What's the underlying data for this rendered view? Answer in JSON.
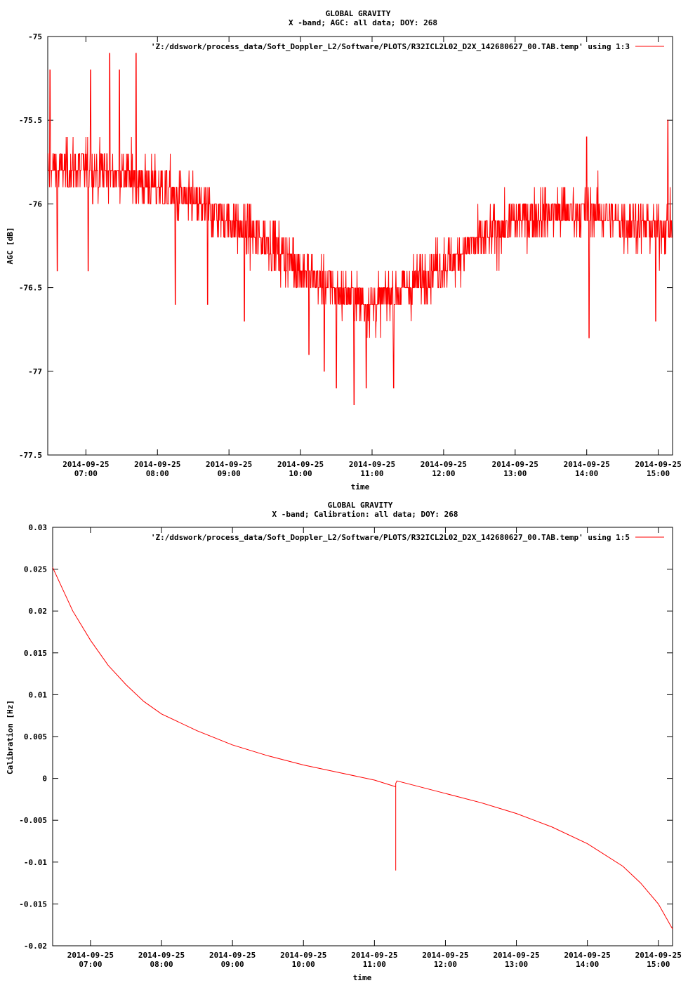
{
  "chart_data": [
    {
      "type": "line",
      "title": "GLOBAL GRAVITY",
      "subtitle": "X -band; AGC: all data; DOY: 268",
      "xlabel": "time",
      "ylabel": "AGC [dB]",
      "ylim": [
        -77.5,
        -75
      ],
      "yticks": [
        "-75",
        "-75.5",
        "-76",
        "-76.5",
        "-77",
        "-77.5"
      ],
      "xlim": [
        "06:28",
        "15:12"
      ],
      "xtick_dates": [
        "2014-09-25",
        "2014-09-25",
        "2014-09-25",
        "2014-09-25",
        "2014-09-25",
        "2014-09-25",
        "2014-09-25",
        "2014-09-25",
        "2014-09-25"
      ],
      "xtick_times": [
        "07:00",
        "08:00",
        "09:00",
        "10:00",
        "11:00",
        "12:00",
        "13:00",
        "14:00",
        "15:00"
      ],
      "grid": false,
      "legend_position": "top-right",
      "series": [
        {
          "name": "'Z:/ddswork/process_data/Soft_Doppler_L2/Software/PLOTS/R32ICL2L02_D2X_142680627_00.TAB.temp' using 1:3",
          "color": "#ff0000",
          "trend": {
            "x": [
              "06:28",
              "07:00",
              "07:30",
              "08:00",
              "08:30",
              "09:00",
              "09:30",
              "10:00",
              "10:30",
              "11:00",
              "11:30",
              "12:00",
              "12:30",
              "13:00",
              "13:30",
              "14:00",
              "14:30",
              "15:00",
              "15:12"
            ],
            "y": [
              -75.8,
              -75.78,
              -75.82,
              -75.9,
              -76.0,
              -76.1,
              -76.22,
              -76.38,
              -76.52,
              -76.6,
              -76.5,
              -76.35,
              -76.22,
              -76.1,
              -76.05,
              -76.05,
              -76.1,
              -76.15,
              -76.15
            ]
          },
          "noise_std": 0.13,
          "spikes": [
            {
              "x": "06:30",
              "y": -75.2
            },
            {
              "x": "06:36",
              "y": -76.4
            },
            {
              "x": "07:02",
              "y": -76.4
            },
            {
              "x": "07:04",
              "y": -75.2
            },
            {
              "x": "07:20",
              "y": -75.1
            },
            {
              "x": "07:28",
              "y": -75.2
            },
            {
              "x": "07:42",
              "y": -75.1
            },
            {
              "x": "08:15",
              "y": -76.6
            },
            {
              "x": "08:42",
              "y": -76.6
            },
            {
              "x": "09:13",
              "y": -76.7
            },
            {
              "x": "10:07",
              "y": -76.9
            },
            {
              "x": "10:20",
              "y": -77.0
            },
            {
              "x": "10:30",
              "y": -77.1
            },
            {
              "x": "10:45",
              "y": -77.2
            },
            {
              "x": "10:55",
              "y": -77.1
            },
            {
              "x": "11:18",
              "y": -77.1
            },
            {
              "x": "14:00",
              "y": -75.6
            },
            {
              "x": "14:02",
              "y": -76.8
            },
            {
              "x": "14:58",
              "y": -76.7
            },
            {
              "x": "15:08",
              "y": -75.5
            }
          ]
        }
      ]
    },
    {
      "type": "line",
      "title": "GLOBAL GRAVITY",
      "subtitle": "X -band; Calibration: all data; DOY: 268",
      "xlabel": "time",
      "ylabel": "Calibration [Hz]",
      "ylim": [
        -0.02,
        0.03
      ],
      "yticks": [
        "0.03",
        "0.025",
        "0.02",
        "0.015",
        "0.01",
        "0.005",
        "0",
        "-0.005",
        "-0.01",
        "-0.015",
        "-0.02"
      ],
      "xlim": [
        "06:28",
        "15:12"
      ],
      "xtick_dates": [
        "2014-09-25",
        "2014-09-25",
        "2014-09-25",
        "2014-09-25",
        "2014-09-25",
        "2014-09-25",
        "2014-09-25",
        "2014-09-25",
        "2014-09-25"
      ],
      "xtick_times": [
        "07:00",
        "08:00",
        "09:00",
        "10:00",
        "11:00",
        "12:00",
        "13:00",
        "14:00",
        "15:00"
      ],
      "grid": false,
      "legend_position": "top-right",
      "series": [
        {
          "name": "'Z:/ddswork/process_data/Soft_Doppler_L2/Software/PLOTS/R32ICL2L02_D2X_142680627_00.TAB.temp' using 1:5",
          "color": "#ff0000",
          "points": [
            {
              "x": "06:28",
              "y": 0.0252
            },
            {
              "x": "06:45",
              "y": 0.02
            },
            {
              "x": "07:00",
              "y": 0.0165
            },
            {
              "x": "07:15",
              "y": 0.0135
            },
            {
              "x": "07:30",
              "y": 0.0112
            },
            {
              "x": "07:45",
              "y": 0.0092
            },
            {
              "x": "08:00",
              "y": 0.0077
            },
            {
              "x": "08:30",
              "y": 0.0057
            },
            {
              "x": "09:00",
              "y": 0.004
            },
            {
              "x": "09:30",
              "y": 0.0027
            },
            {
              "x": "10:00",
              "y": 0.0016
            },
            {
              "x": "10:30",
              "y": 0.0007
            },
            {
              "x": "11:00",
              "y": -0.0002
            },
            {
              "x": "11:18",
              "y": -0.001
            },
            {
              "x": "11:18",
              "y": -0.011
            },
            {
              "x": "11:18",
              "y": -0.0048
            },
            {
              "x": "11:18",
              "y": -0.0006
            },
            {
              "x": "11:19",
              "y": -0.0003
            },
            {
              "x": "11:30",
              "y": -0.0007
            },
            {
              "x": "12:00",
              "y": -0.0018
            },
            {
              "x": "12:30",
              "y": -0.0029
            },
            {
              "x": "13:00",
              "y": -0.0042
            },
            {
              "x": "13:30",
              "y": -0.0058
            },
            {
              "x": "14:00",
              "y": -0.0078
            },
            {
              "x": "14:30",
              "y": -0.0105
            },
            {
              "x": "14:45",
              "y": -0.0125
            },
            {
              "x": "15:00",
              "y": -0.015
            },
            {
              "x": "15:12",
              "y": -0.018
            }
          ]
        }
      ]
    }
  ]
}
